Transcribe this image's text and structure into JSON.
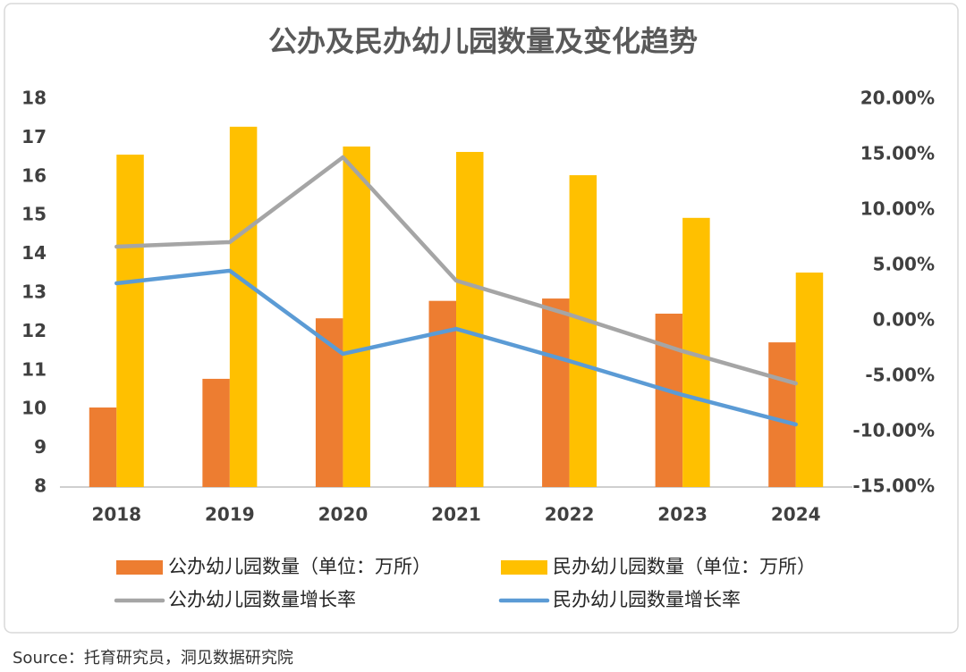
{
  "chart_data": {
    "type": "combo",
    "title": "公办及民办幼儿园数量及变化趋势",
    "categories": [
      "2018",
      "2019",
      "2020",
      "2021",
      "2022",
      "2023",
      "2024"
    ],
    "series": [
      {
        "name": "公办幼儿园数量（单位：万所）",
        "type": "bar",
        "color": "#ed7d31",
        "values": [
          10.05,
          10.79,
          12.35,
          12.8,
          12.86,
          12.47,
          11.73
        ]
      },
      {
        "name": "民办幼儿园数量（单位：万所）",
        "type": "bar",
        "color": "#ffc000",
        "values": [
          16.57,
          17.29,
          16.78,
          16.64,
          16.04,
          14.94,
          13.53
        ]
      },
      {
        "name": "公办幼儿园数量增长率",
        "type": "line",
        "axis": "y2",
        "color": "#a5a5a5",
        "values": [
          6.69,
          7.1,
          14.76,
          3.63,
          0.56,
          -2.74,
          -5.65
        ]
      },
      {
        "name": "民办幼儿园数量增长率",
        "type": "line",
        "axis": "y2",
        "color": "#5b9bd5",
        "values": [
          3.39,
          4.52,
          -2.98,
          -0.73,
          -3.63,
          -6.69,
          -9.35
        ]
      }
    ],
    "ylim": [
      8,
      18
    ],
    "yticks": [
      8,
      9,
      10,
      11,
      12,
      13,
      14,
      15,
      16,
      17,
      18
    ],
    "y2lim": [
      -15,
      20
    ],
    "y2ticks": [
      {
        "value": -15,
        "label": "-15.00%"
      },
      {
        "value": -10,
        "label": "-10.00%"
      },
      {
        "value": -5,
        "label": "-5.00%"
      },
      {
        "value": 0,
        "label": "0.00%"
      },
      {
        "value": 5,
        "label": "5.00%"
      },
      {
        "value": 10,
        "label": "10.00%"
      },
      {
        "value": 15,
        "label": "15.00%"
      },
      {
        "value": 20,
        "label": "20.00%"
      }
    ],
    "grid": false,
    "legend": "bottom"
  },
  "source": "Source：托育研究员，洞见数据研究院"
}
